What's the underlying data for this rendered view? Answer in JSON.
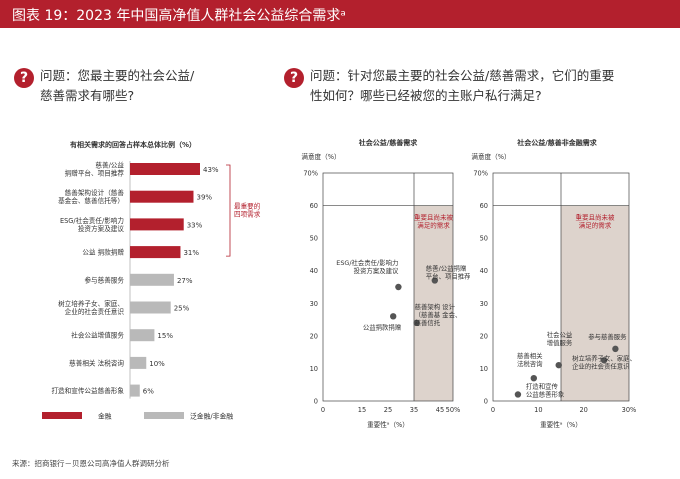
{
  "header": {
    "title": "图表 19：2023 年中国高净值人群社会公益综合需求ᵃ"
  },
  "questions": {
    "left": {
      "icon": "?",
      "line1": "问题：您最主要的社会公益/",
      "line2": "慈善需求有哪些?"
    },
    "right": {
      "icon": "?",
      "line1": "问题：针对您最主要的社会公益/慈善需求，它们的重要",
      "line2": "性如何？哪些已经被您的主账户私行满足?"
    }
  },
  "colors": {
    "accent": "#b3202d",
    "gray_bar": "#b9b9b9",
    "shade": "#ddd3cc"
  },
  "chart_data": [
    {
      "type": "bar",
      "orientation": "horizontal",
      "title": "有相关需求的回答占样本总体比例（%）",
      "categories": [
        [
          "慈善/公益",
          "捐赠平台、项目推荐"
        ],
        [
          "慈善架构设计（慈善",
          "基金会、慈善信托等）"
        ],
        [
          "ESG/社会责任/影响力",
          "投资方案及建议"
        ],
        [
          "公益 捐款捐赠"
        ],
        [
          "参与慈善服务"
        ],
        [
          "树立培养子女、家庭、",
          "企业的社会责任意识"
        ],
        [
          "社会公益增值服务"
        ],
        [
          "慈善相关 法税咨询"
        ],
        [
          "打造和宣传公益慈善形象"
        ]
      ],
      "values": [
        43,
        39,
        33,
        31,
        27,
        25,
        15,
        10,
        6
      ],
      "value_labels": [
        "43%",
        "39%",
        "33%",
        "31%",
        "27%",
        "25%",
        "15%",
        "10%",
        "6%"
      ],
      "highlight_count": 4,
      "bracket_label": [
        "最重要的",
        "四项需求"
      ],
      "legend": [
        {
          "name": "金融",
          "color": "#b3202d"
        },
        {
          "name": "泛金融/非金融",
          "color": "#b9b9b9"
        }
      ]
    },
    {
      "type": "scatter",
      "title": "社会公益/慈善需求",
      "ylabel": "满意度（%）",
      "xlabel": "重要性ᵃ（%）",
      "xlim": [
        0,
        50
      ],
      "ylim": [
        0,
        70
      ],
      "xticks": [
        "0",
        "15",
        "25",
        "35",
        "45",
        "50%"
      ],
      "yticks": [
        "0",
        "10",
        "20",
        "30",
        "40",
        "50",
        "60",
        "70%"
      ],
      "shade_region": {
        "x": [
          35,
          50
        ],
        "y": [
          0,
          60
        ],
        "label": [
          "重要且尚未被",
          "满足的需求"
        ]
      },
      "points": [
        {
          "x": 29,
          "y": 35,
          "label": [
            "ESG/社会责任/影响力",
            "投资方案及建议"
          ]
        },
        {
          "x": 43,
          "y": 37,
          "label": [
            "慈善/公益捐赠",
            "平台、项目推荐"
          ]
        },
        {
          "x": 27,
          "y": 26,
          "label": [
            "公益捐款捐赠"
          ]
        },
        {
          "x": 36,
          "y": 24,
          "label": [
            "慈善架构 设计",
            "（慈善基 金会、",
            "慈善信托"
          ]
        }
      ]
    },
    {
      "type": "scatter",
      "title": "社会公益/慈善非金融需求",
      "ylabel": "满意度（%）",
      "xlabel": "重要性ᵃ（%）",
      "xlim": [
        0,
        30
      ],
      "ylim": [
        0,
        70
      ],
      "xticks": [
        "0",
        "10",
        "20",
        "30%"
      ],
      "yticks": [
        "0",
        "10",
        "20",
        "30",
        "40",
        "50",
        "60",
        "70%"
      ],
      "shade_region": {
        "x": [
          15,
          30
        ],
        "y": [
          0,
          60
        ],
        "label": [
          "重要且尚未被",
          "满足的需求"
        ]
      },
      "points": [
        {
          "x": 14.5,
          "y": 11,
          "label": [
            "社会公益",
            "增值服务"
          ]
        },
        {
          "x": 27,
          "y": 16,
          "label": [
            "参与慈善服务"
          ]
        },
        {
          "x": 24.5,
          "y": 12.5,
          "label": [
            "树立培养子女、家庭、",
            "企业的社会责任意识"
          ]
        },
        {
          "x": 9,
          "y": 7,
          "label": [
            "慈善相关",
            "法税咨询"
          ]
        },
        {
          "x": 5.5,
          "y": 2,
          "label": [
            "打造和宣传",
            "公益慈善形象"
          ]
        }
      ]
    }
  ],
  "source": "来源：招商银行－贝恩公司高净值人群调研分析"
}
